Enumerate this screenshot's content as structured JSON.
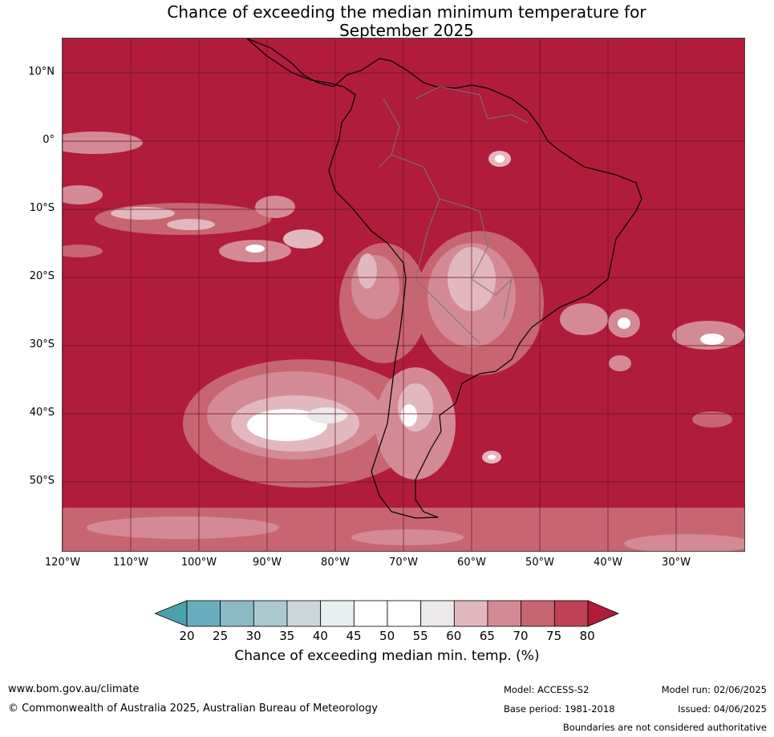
{
  "title": {
    "line1": "Chance of exceeding the median minimum temperature for",
    "line2": "September 2025"
  },
  "map": {
    "ocean_fill_color": "#b01c3a",
    "lat_labels": [
      "10°N",
      "0°",
      "10°S",
      "20°S",
      "30°S",
      "40°S",
      "50°S"
    ],
    "lon_labels": [
      "120°W",
      "110°W",
      "100°W",
      "90°W",
      "80°W",
      "70°W",
      "60°W",
      "50°W",
      "40°W",
      "30°W"
    ]
  },
  "colorbar": {
    "ticks": [
      "20",
      "25",
      "30",
      "35",
      "40",
      "45",
      "50",
      "55",
      "60",
      "65",
      "70",
      "75",
      "80"
    ],
    "colors": [
      "#4aa0ad",
      "#6aaebd",
      "#8bbac6",
      "#a9c9cf",
      "#ccd7da",
      "#e9eff1",
      "#ffffff",
      "#ffffff",
      "#ebe9ea",
      "#e2b8bf",
      "#d48a94",
      "#c76670",
      "#be4253",
      "#b01c3a"
    ],
    "label": "Chance of exceeding median min. temp. (%)"
  },
  "footer": {
    "website": "www.bom.gov.au/climate",
    "copyright": "© Commonwealth of Australia 2025, Australian Bureau of Meteorology",
    "model": "Model: ACCESS-S2",
    "base_period": "Base period: 1981-2018",
    "model_run": "Model run: 02/06/2025",
    "issued": "Issued: 04/06/2025",
    "disclaimer": "Boundaries are not considered authoritative"
  }
}
